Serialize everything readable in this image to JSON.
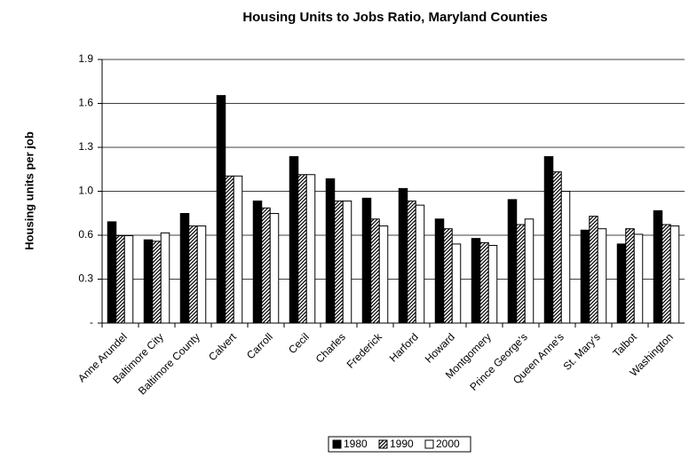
{
  "chart_data": {
    "type": "bar",
    "title": "Housing Units to Jobs Ratio, Maryland Counties",
    "y_label": "Housing units per job",
    "categories": [
      "Anne Arundel",
      "Baltimore City",
      "Baltimore County",
      "Calvert",
      "Carroll",
      "Cecil",
      "Charles",
      "Frederick",
      "Harford",
      "Howard",
      "Montgomery",
      "Prince George's",
      "Queen Anne's",
      "St. Mary's",
      "Talbot",
      "Washington"
    ],
    "series": [
      {
        "name": "1980",
        "color": "#000000",
        "fill_style": "solid",
        "values": [
          0.73,
          0.6,
          0.79,
          1.64,
          0.88,
          1.2,
          1.04,
          0.9,
          0.97,
          0.75,
          0.61,
          0.89,
          1.2,
          0.67,
          0.57,
          0.81
        ]
      },
      {
        "name": "1990",
        "color": "#000000",
        "fill_style": "hatch",
        "values": [
          0.63,
          0.59,
          0.7,
          1.06,
          0.83,
          1.07,
          0.88,
          0.75,
          0.88,
          0.68,
          0.58,
          0.71,
          1.09,
          0.77,
          0.68,
          0.71
        ]
      },
      {
        "name": "2000",
        "color": "#ffffff",
        "fill_style": "solid",
        "values": [
          0.63,
          0.65,
          0.7,
          1.06,
          0.79,
          1.07,
          0.88,
          0.7,
          0.85,
          0.57,
          0.56,
          0.75,
          0.95,
          0.68,
          0.64,
          0.7
        ]
      }
    ],
    "ylim": [
      0,
      1.9
    ],
    "yticks": [
      {
        "value": 0,
        "label": "-"
      },
      {
        "value": 0.3167,
        "label": "0.3"
      },
      {
        "value": 0.6333,
        "label": "0.6"
      },
      {
        "value": 0.95,
        "label": "1.0"
      },
      {
        "value": 1.2667,
        "label": "1.3"
      },
      {
        "value": 1.5833,
        "label": "1.6"
      },
      {
        "value": 1.9,
        "label": "1.9"
      }
    ],
    "grid": true,
    "legend": "bottom"
  }
}
